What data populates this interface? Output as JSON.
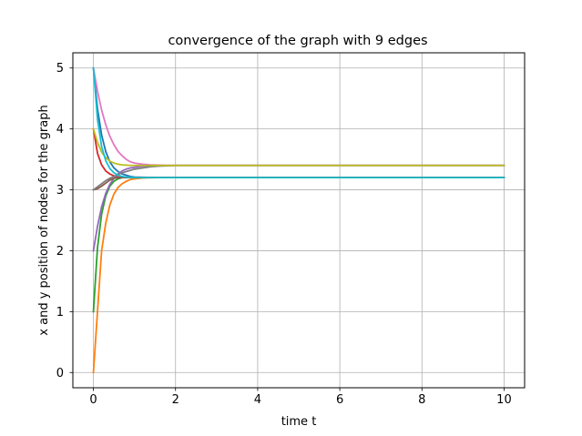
{
  "chart_data": {
    "type": "line",
    "title": "convergence of the graph with 9 edges",
    "xlabel": "time t",
    "ylabel": "x and y position of nodes for the graph",
    "xlim": [
      -0.5,
      10.5
    ],
    "ylim": [
      -0.25,
      5.25
    ],
    "xticks": [
      0,
      2,
      4,
      6,
      8,
      10
    ],
    "yticks": [
      0,
      1,
      2,
      3,
      4,
      5
    ],
    "grid": true,
    "legend": "none",
    "x": [
      0,
      0.1,
      0.2,
      0.3,
      0.4,
      0.5,
      0.6,
      0.7,
      0.8,
      0.9,
      1.0,
      1.2,
      1.4,
      1.6,
      1.8,
      2.0,
      2.5,
      3,
      4,
      5,
      6,
      7,
      8,
      9,
      10
    ],
    "series": [
      {
        "color": "#1f77b4",
        "values": [
          5.0,
          4.33,
          3.9,
          3.63,
          3.46,
          3.36,
          3.3,
          3.26,
          3.24,
          3.22,
          3.21,
          3.205,
          3.202,
          3.201,
          3.2,
          3.2,
          3.2,
          3.2,
          3.2,
          3.2,
          3.2,
          3.2,
          3.2,
          3.2,
          3.2
        ]
      },
      {
        "color": "#ff7f0e",
        "values": [
          0.0,
          1.0,
          2.0,
          2.45,
          2.75,
          2.93,
          3.04,
          3.1,
          3.14,
          3.17,
          3.18,
          3.195,
          3.199,
          3.2,
          3.2,
          3.2,
          3.2,
          3.2,
          3.2,
          3.2,
          3.2,
          3.2,
          3.2,
          3.2,
          3.2
        ]
      },
      {
        "color": "#2ca02c",
        "values": [
          1.0,
          2.05,
          2.6,
          2.9,
          3.06,
          3.14,
          3.18,
          3.2,
          3.2,
          3.2,
          3.2,
          3.2,
          3.2,
          3.2,
          3.2,
          3.2,
          3.2,
          3.2,
          3.2,
          3.2,
          3.2,
          3.2,
          3.2,
          3.2,
          3.2
        ]
      },
      {
        "color": "#d62728",
        "values": [
          4.0,
          3.6,
          3.41,
          3.31,
          3.26,
          3.23,
          3.21,
          3.205,
          3.2,
          3.2,
          3.2,
          3.2,
          3.2,
          3.2,
          3.2,
          3.2,
          3.2,
          3.2,
          3.2,
          3.2,
          3.2,
          3.2,
          3.2,
          3.2,
          3.2
        ]
      },
      {
        "color": "#9467bd",
        "values": [
          2.0,
          2.4,
          2.72,
          2.94,
          3.09,
          3.19,
          3.26,
          3.31,
          3.34,
          3.36,
          3.37,
          3.39,
          3.395,
          3.4,
          3.4,
          3.4,
          3.4,
          3.4,
          3.4,
          3.4,
          3.4,
          3.4,
          3.4,
          3.4,
          3.4
        ]
      },
      {
        "color": "#8c564b",
        "values": [
          3.0,
          3.02,
          3.06,
          3.11,
          3.16,
          3.19,
          3.2,
          3.2,
          3.2,
          3.2,
          3.2,
          3.2,
          3.2,
          3.2,
          3.2,
          3.2,
          3.2,
          3.2,
          3.2,
          3.2,
          3.2,
          3.2,
          3.2,
          3.2,
          3.2
        ]
      },
      {
        "color": "#e377c2",
        "values": [
          5.0,
          4.62,
          4.31,
          4.07,
          3.88,
          3.74,
          3.63,
          3.56,
          3.5,
          3.46,
          3.44,
          3.42,
          3.41,
          3.405,
          3.4,
          3.4,
          3.4,
          3.4,
          3.4,
          3.4,
          3.4,
          3.4,
          3.4,
          3.4,
          3.4
        ]
      },
      {
        "color": "#7f7f7f",
        "values": [
          3.0,
          3.05,
          3.1,
          3.15,
          3.19,
          3.22,
          3.25,
          3.28,
          3.3,
          3.32,
          3.34,
          3.36,
          3.38,
          3.39,
          3.395,
          3.4,
          3.4,
          3.4,
          3.4,
          3.4,
          3.4,
          3.4,
          3.4,
          3.4,
          3.4
        ]
      },
      {
        "color": "#bcbd22",
        "values": [
          4.0,
          3.78,
          3.62,
          3.53,
          3.47,
          3.44,
          3.42,
          3.41,
          3.405,
          3.4,
          3.4,
          3.4,
          3.4,
          3.4,
          3.4,
          3.4,
          3.4,
          3.4,
          3.4,
          3.4,
          3.4,
          3.4,
          3.4,
          3.4,
          3.4
        ]
      },
      {
        "color": "#17becf",
        "values": [
          5.0,
          4.16,
          3.71,
          3.48,
          3.35,
          3.28,
          3.24,
          3.22,
          3.21,
          3.205,
          3.2,
          3.2,
          3.2,
          3.2,
          3.2,
          3.2,
          3.2,
          3.2,
          3.2,
          3.2,
          3.2,
          3.2,
          3.2,
          3.2,
          3.2
        ]
      }
    ]
  }
}
